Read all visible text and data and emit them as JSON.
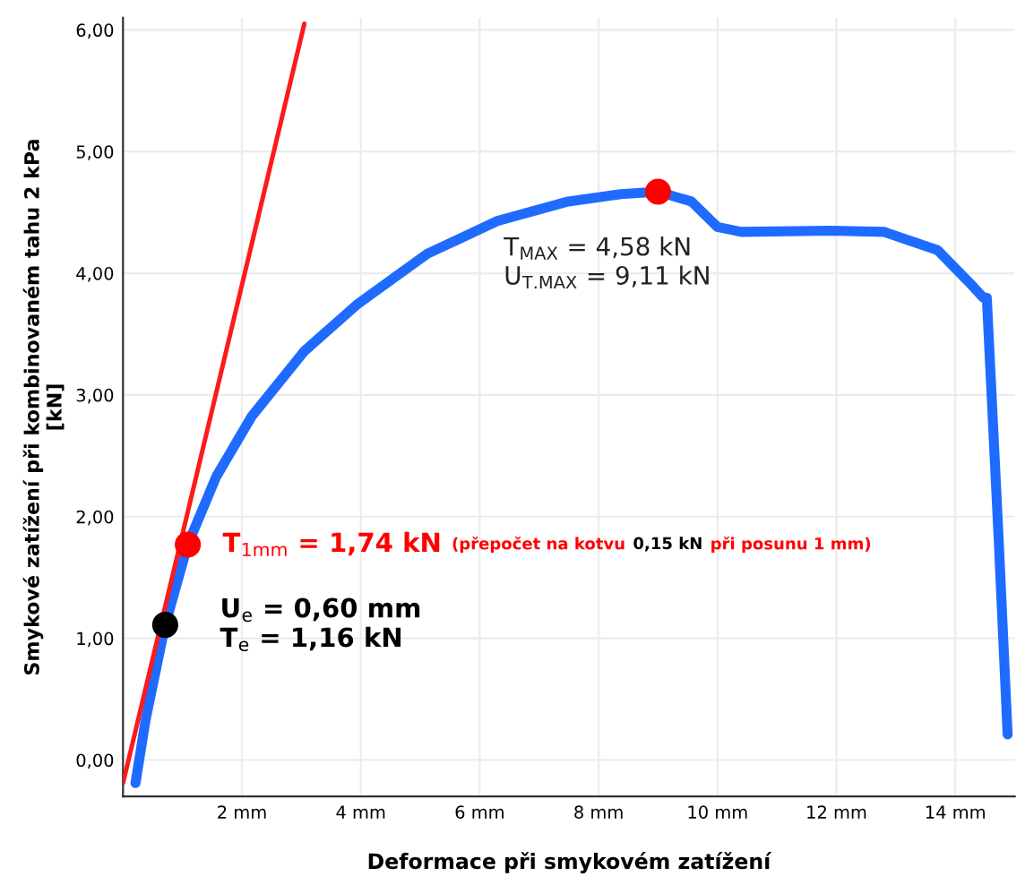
{
  "chart_data": {
    "type": "line",
    "xlabel": "Deformace při smykovém zatížení",
    "ylabel": "Smykové zatížení při kombinovaném tahu 2 kPa\n[kN]",
    "xlim": [
      0,
      15
    ],
    "ylim": [
      -0.3,
      6.1
    ],
    "xticks": [
      {
        "value": 2,
        "label": "2 mm"
      },
      {
        "value": 4,
        "label": "4 mm"
      },
      {
        "value": 6,
        "label": "6 mm"
      },
      {
        "value": 8,
        "label": "8 mm"
      },
      {
        "value": 10,
        "label": "10 mm"
      },
      {
        "value": 12,
        "label": "12 mm"
      },
      {
        "value": 14,
        "label": "14 mm"
      }
    ],
    "yticks": [
      {
        "value": 0,
        "label": "0,00"
      },
      {
        "value": 1,
        "label": "1,00"
      },
      {
        "value": 2,
        "label": "2,00"
      },
      {
        "value": 3,
        "label": "3,00"
      },
      {
        "value": 4,
        "label": "4,00"
      },
      {
        "value": 5,
        "label": "5,00"
      },
      {
        "value": 6,
        "label": "6,00"
      }
    ],
    "grid": true,
    "series": [
      {
        "type": "line",
        "color": "#1f6bff",
        "x": [
          0.21,
          0.38,
          0.71,
          1.09,
          1.57,
          2.16,
          3.05,
          3.93,
          5.12,
          6.3,
          7.49,
          8.37,
          9.0,
          9.56,
          10.0,
          10.4,
          11.9,
          12.8,
          13.7,
          14.3,
          14.47,
          14.53,
          14.73,
          14.88
        ],
        "values": [
          -0.19,
          0.33,
          1.11,
          1.77,
          2.33,
          2.82,
          3.36,
          3.74,
          4.16,
          4.43,
          4.59,
          4.65,
          4.67,
          4.59,
          4.38,
          4.34,
          4.35,
          4.34,
          4.19,
          3.89,
          3.8,
          3.8,
          1.81,
          0.21
        ]
      },
      {
        "type": "line",
        "color": "#ff1a1a",
        "x": [
          0.0,
          3.05
        ],
        "values": [
          -0.19,
          6.05
        ]
      },
      {
        "type": "scatter",
        "marker": "circle",
        "x": [
          1.09,
          9.0,
          0.71
        ],
        "values": [
          1.77,
          4.67,
          1.11
        ],
        "colors": [
          "#ff0000",
          "#ff0000",
          "#000000"
        ]
      }
    ],
    "annotations": [
      {
        "text": "T$_{1mm}$ = 1,74 kN",
        "x": 1.09,
        "y": 1.77
      },
      "(přepočet na kotvu",
      "0,15 kN",
      "při posunu 1 mm)",
      {
        "text": "U$_{e}$ = 0,60 mm\nT$_{e}$ = 1,16 kN",
        "x": 0.71,
        "y": 1.11
      },
      {
        "text": "T$_{MAX}$ = 4,58 kN",
        "x": 9.0,
        "y": 4.67
      },
      "U$_{T.MAX}$ = 9,11 kN"
    ]
  }
}
